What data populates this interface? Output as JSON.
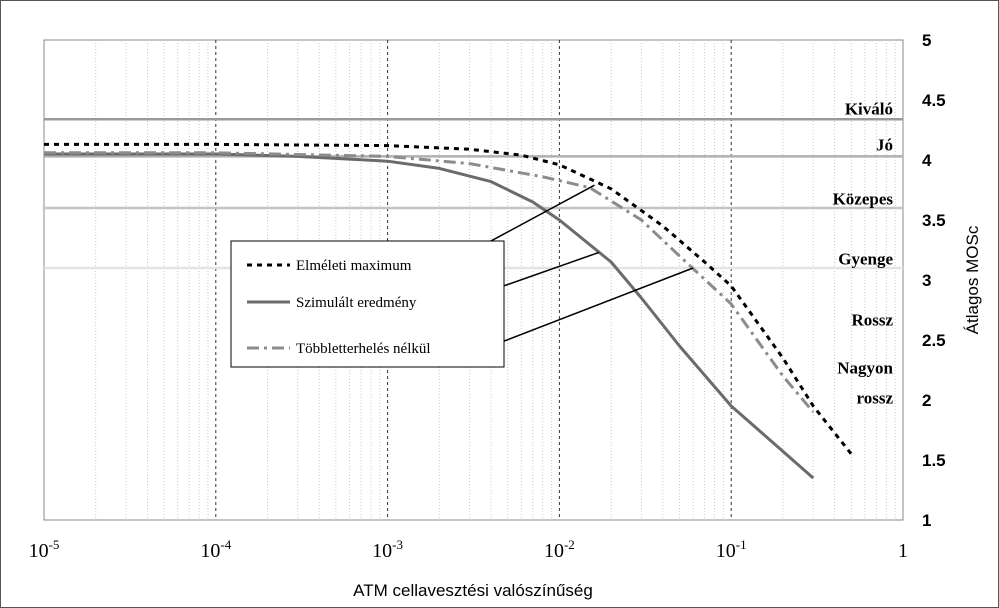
{
  "chart_data": {
    "type": "line",
    "xscale": "log",
    "xlim": [
      1e-05,
      1
    ],
    "ylim": [
      1,
      5
    ],
    "xlabel": "ATM cellavesztési valószínűség",
    "ylabel": "Átlagos MOSc",
    "x_tick_labels": [
      {
        "base": "10",
        "exp": "-5"
      },
      {
        "base": "10",
        "exp": "-4"
      },
      {
        "base": "10",
        "exp": "-3"
      },
      {
        "base": "10",
        "exp": "-2"
      },
      {
        "base": "10",
        "exp": "-1"
      },
      {
        "base": "1",
        "exp": ""
      }
    ],
    "y_tick_labels": [
      "5",
      "4.5",
      "4",
      "3.5",
      "3",
      "2.5",
      "2",
      "1.5",
      "1"
    ],
    "grid": "vertical dashed major and dotted minor",
    "legend_position": "center-left",
    "series": [
      {
        "name": "Elméleti maximum",
        "color": "#000000",
        "style": "dotted",
        "points": [
          [
            1e-05,
            4.13
          ],
          [
            0.0001,
            4.13
          ],
          [
            0.001,
            4.12
          ],
          [
            0.003,
            4.09
          ],
          [
            0.006,
            4.04
          ],
          [
            0.01,
            3.96
          ],
          [
            0.02,
            3.76
          ],
          [
            0.04,
            3.45
          ],
          [
            0.07,
            3.15
          ],
          [
            0.1,
            2.95
          ],
          [
            0.2,
            2.35
          ],
          [
            0.3,
            1.95
          ],
          [
            0.5,
            1.55
          ]
        ]
      },
      {
        "name": "Szimulált eredmény",
        "color": "#6b6b6b",
        "style": "solid",
        "points": [
          [
            1e-05,
            4.05
          ],
          [
            0.0001,
            4.05
          ],
          [
            0.0003,
            4.03
          ],
          [
            0.001,
            3.99
          ],
          [
            0.002,
            3.93
          ],
          [
            0.004,
            3.82
          ],
          [
            0.007,
            3.65
          ],
          [
            0.01,
            3.5
          ],
          [
            0.02,
            3.15
          ],
          [
            0.03,
            2.85
          ],
          [
            0.05,
            2.45
          ],
          [
            0.1,
            1.95
          ],
          [
            0.3,
            1.35
          ]
        ]
      },
      {
        "name": "Többletterhelés nélkül",
        "color": "#8c8c8c",
        "style": "dashed",
        "points": [
          [
            1e-05,
            4.06
          ],
          [
            0.0001,
            4.06
          ],
          [
            0.001,
            4.03
          ],
          [
            0.003,
            3.97
          ],
          [
            0.008,
            3.86
          ],
          [
            0.015,
            3.77
          ],
          [
            0.03,
            3.5
          ],
          [
            0.05,
            3.2
          ],
          [
            0.1,
            2.8
          ],
          [
            0.2,
            2.2
          ],
          [
            0.3,
            1.9
          ]
        ]
      }
    ],
    "quality_lines": [
      {
        "y": 4.34,
        "color": "#9a9a9a"
      },
      {
        "y": 4.03,
        "color": "#b0b0b0"
      },
      {
        "y": 3.6,
        "color": "#c4c4c4"
      },
      {
        "y": 3.1,
        "color": "#e4e4e4"
      }
    ],
    "quality_labels": [
      {
        "text": "Kiváló",
        "y": 4.43
      },
      {
        "text": "Jó",
        "y": 4.13
      },
      {
        "text": "Közepes",
        "y": 3.68
      },
      {
        "text": "Gyenge",
        "y": 3.18
      },
      {
        "text": "Rossz",
        "y": 2.67
      },
      {
        "text": "Nagyon",
        "y": 2.27
      },
      {
        "text": "rossz",
        "y": 2.02
      }
    ],
    "legend_pointer_targets": [
      {
        "x": 0.016,
        "y": 3.79
      },
      {
        "x": 0.017,
        "y": 3.23
      },
      {
        "x": 0.06,
        "y": 3.1
      }
    ]
  }
}
